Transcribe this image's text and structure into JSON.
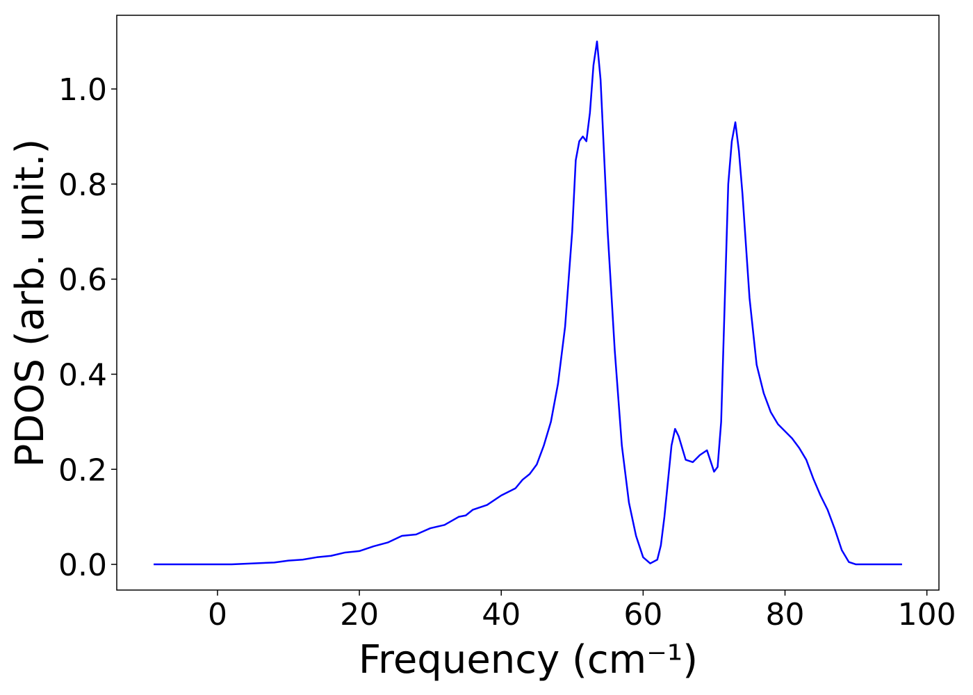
{
  "chart_data": {
    "type": "line",
    "xlabel": "Frequency (cm⁻¹)",
    "ylabel": "PDOS (arb. unit.)",
    "color": "#0000ff",
    "x": [
      -9,
      2,
      8,
      10,
      12,
      14,
      16,
      18,
      20,
      22,
      24,
      26,
      28,
      30,
      32,
      34,
      35,
      36,
      38,
      40,
      42,
      43,
      44,
      45,
      46,
      47,
      48,
      49,
      50,
      50.5,
      51,
      51.5,
      52,
      52.5,
      53,
      53.5,
      54,
      55,
      56,
      57,
      58,
      59,
      60,
      61,
      62,
      62.5,
      63,
      64,
      64.5,
      65,
      66,
      67,
      68,
      69,
      70,
      70.5,
      71,
      71.5,
      72,
      72.5,
      73,
      73.5,
      74,
      75,
      76,
      77,
      78,
      79,
      80,
      81,
      82,
      83,
      84,
      85,
      86,
      87,
      88,
      89,
      90,
      96.5
    ],
    "values": [
      0,
      0,
      0.004,
      0.008,
      0.01,
      0.015,
      0.018,
      0.025,
      0.028,
      0.038,
      0.046,
      0.06,
      0.063,
      0.076,
      0.083,
      0.1,
      0.103,
      0.115,
      0.125,
      0.145,
      0.16,
      0.178,
      0.19,
      0.21,
      0.25,
      0.3,
      0.38,
      0.5,
      0.7,
      0.85,
      0.89,
      0.9,
      0.89,
      0.95,
      1.05,
      1.1,
      1.02,
      0.7,
      0.45,
      0.25,
      0.13,
      0.06,
      0.015,
      0.002,
      0.01,
      0.04,
      0.1,
      0.25,
      0.285,
      0.27,
      0.22,
      0.215,
      0.23,
      0.24,
      0.195,
      0.205,
      0.3,
      0.55,
      0.8,
      0.89,
      0.93,
      0.87,
      0.78,
      0.56,
      0.42,
      0.36,
      0.32,
      0.295,
      0.28,
      0.265,
      0.245,
      0.22,
      0.18,
      0.145,
      0.115,
      0.075,
      0.03,
      0.005,
      0,
      0
    ],
    "xlim": [
      -14.2,
      101.7
    ],
    "ylim": [
      -0.054,
      1.155
    ],
    "xticks": [
      0,
      20,
      40,
      60,
      80,
      100
    ],
    "yticks": [
      {
        "value": 0,
        "label": "0.0"
      },
      0.2,
      0.4,
      0.6,
      0.8,
      {
        "value": 1,
        "label": "1.0"
      }
    ]
  }
}
